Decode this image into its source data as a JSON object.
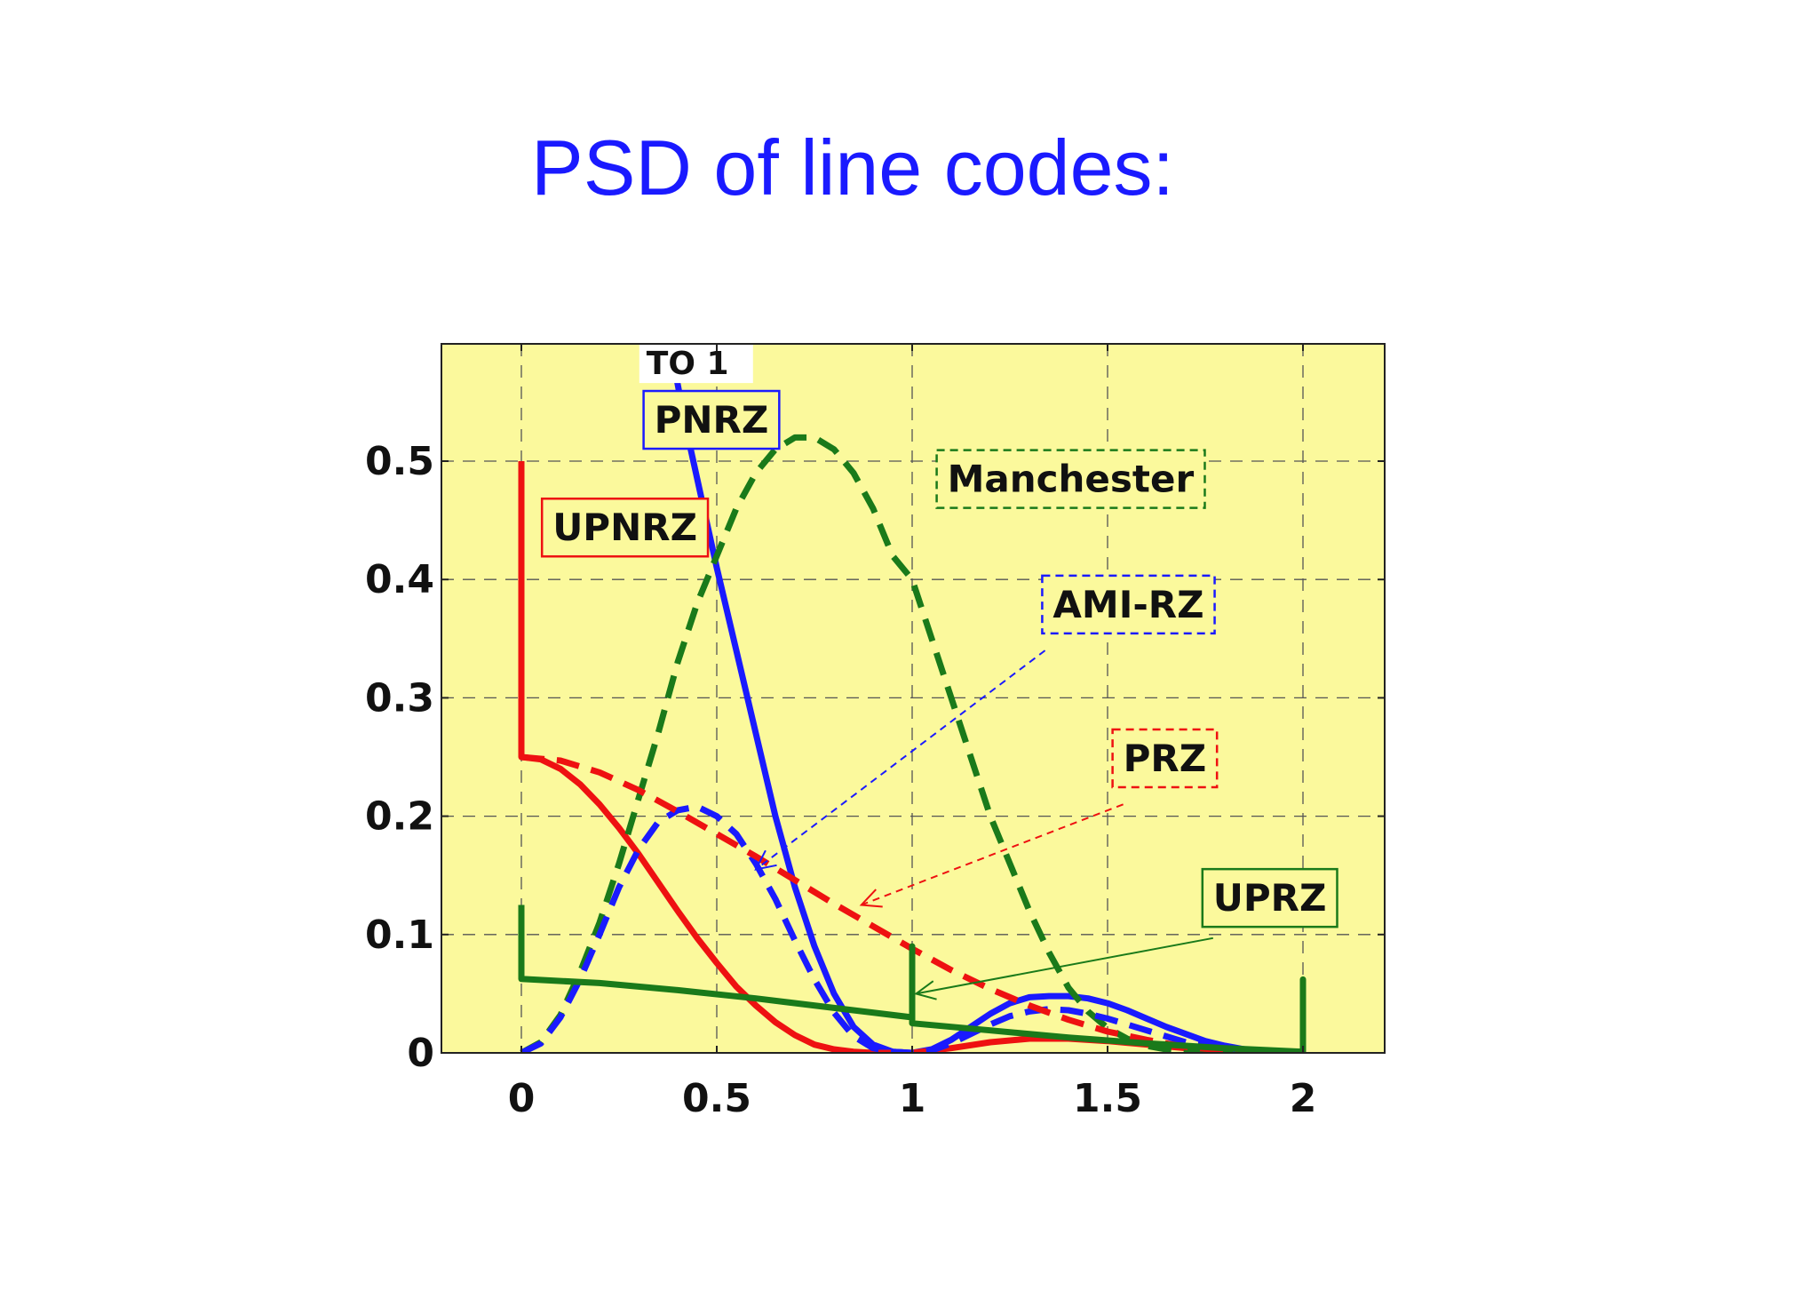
{
  "slide": {
    "title": "PSD of line codes:",
    "title_color": "#1a1aff"
  },
  "chart_data": {
    "type": "line",
    "xlim": [
      0,
      2
    ],
    "ylim": [
      0,
      0.5
    ],
    "x_ticks": [
      "0",
      "0.5",
      "1",
      "1.5",
      "2"
    ],
    "y_ticks": [
      "0",
      "0.1",
      "0.2",
      "0.3",
      "0.4",
      "0.5"
    ],
    "grid": true,
    "background": "#fbf99c",
    "annotations": [
      {
        "text": "TO 1",
        "at": [
          0.32,
          0.575
        ]
      }
    ],
    "series": [
      {
        "name": "PNRZ",
        "color": "#1a1aff",
        "dash": false,
        "x": [
          0.38,
          0.42,
          0.46,
          0.5,
          0.55,
          0.6,
          0.65,
          0.7,
          0.75,
          0.8,
          0.85,
          0.9,
          0.95,
          1.0,
          1.05,
          1.1,
          1.15,
          1.2,
          1.25,
          1.3,
          1.35,
          1.4,
          1.45,
          1.5,
          1.55,
          1.6,
          1.65,
          1.7,
          1.75,
          1.8,
          1.85,
          1.9,
          1.95,
          2.0
        ],
        "y": [
          0.6,
          0.53,
          0.47,
          0.41,
          0.34,
          0.27,
          0.2,
          0.14,
          0.09,
          0.05,
          0.022,
          0.007,
          0.001,
          0.0,
          0.003,
          0.011,
          0.022,
          0.033,
          0.042,
          0.047,
          0.048,
          0.048,
          0.046,
          0.042,
          0.036,
          0.029,
          0.022,
          0.016,
          0.01,
          0.006,
          0.003,
          0.001,
          0.0,
          0.0
        ],
        "label": {
          "text": "PNRZ",
          "at": [
            0.34,
            0.524
          ],
          "box": "solid",
          "color": "#1a1aff"
        }
      },
      {
        "name": "UPNRZ",
        "color": "#ee1111",
        "dash": false,
        "x": [
          0.0,
          0.0,
          0.0,
          0.05,
          0.1,
          0.15,
          0.2,
          0.25,
          0.3,
          0.35,
          0.4,
          0.45,
          0.5,
          0.55,
          0.6,
          0.65,
          0.7,
          0.75,
          0.8,
          0.85,
          0.9,
          0.95,
          1.0,
          1.1,
          1.2,
          1.3,
          1.4,
          1.5,
          1.6,
          1.7,
          1.8,
          1.9,
          2.0
        ],
        "y": [
          0.5,
          0.4,
          0.25,
          0.248,
          0.24,
          0.227,
          0.21,
          0.19,
          0.168,
          0.144,
          0.12,
          0.097,
          0.076,
          0.056,
          0.04,
          0.026,
          0.015,
          0.007,
          0.003,
          0.001,
          0.0,
          0.0,
          0.0,
          0.004,
          0.009,
          0.012,
          0.012,
          0.01,
          0.007,
          0.004,
          0.002,
          0.0,
          0.0
        ],
        "label": {
          "text": "UPNRZ",
          "at": [
            0.08,
            0.433
          ],
          "box": "solid",
          "color": "#ee1111"
        }
      },
      {
        "name": "Manchester",
        "color": "#1a7a1a",
        "dash": true,
        "x": [
          0.0,
          0.05,
          0.1,
          0.15,
          0.2,
          0.25,
          0.3,
          0.35,
          0.4,
          0.45,
          0.5,
          0.55,
          0.6,
          0.65,
          0.7,
          0.75,
          0.8,
          0.85,
          0.9,
          0.95,
          1.0,
          1.05,
          1.1,
          1.15,
          1.2,
          1.25,
          1.3,
          1.35,
          1.4,
          1.45,
          1.5,
          1.55,
          1.6,
          1.65,
          1.7,
          1.75,
          1.8,
          1.9,
          2.0
        ],
        "y": [
          0.0,
          0.009,
          0.032,
          0.068,
          0.11,
          0.16,
          0.215,
          0.27,
          0.33,
          0.38,
          0.42,
          0.46,
          0.49,
          0.51,
          0.52,
          0.52,
          0.51,
          0.49,
          0.46,
          0.42,
          0.4,
          0.35,
          0.3,
          0.25,
          0.2,
          0.16,
          0.12,
          0.085,
          0.055,
          0.035,
          0.021,
          0.012,
          0.006,
          0.003,
          0.001,
          0.0,
          0.0,
          0.0,
          0.0
        ],
        "label": {
          "text": "Manchester",
          "at": [
            1.09,
            0.474
          ],
          "box": "dashed",
          "color": "#1a7a1a"
        }
      },
      {
        "name": "AMI-RZ",
        "color": "#1a1aff",
        "dash": true,
        "x": [
          0.0,
          0.05,
          0.1,
          0.15,
          0.2,
          0.25,
          0.3,
          0.35,
          0.4,
          0.45,
          0.5,
          0.55,
          0.6,
          0.65,
          0.7,
          0.75,
          0.8,
          0.85,
          0.9,
          0.95,
          1.0,
          1.05,
          1.1,
          1.15,
          1.2,
          1.25,
          1.3,
          1.35,
          1.4,
          1.45,
          1.5,
          1.55,
          1.6,
          1.65,
          1.7,
          1.75,
          1.8,
          1.85,
          1.9,
          1.95,
          2.0
        ],
        "y": [
          0.0,
          0.008,
          0.03,
          0.062,
          0.1,
          0.14,
          0.172,
          0.195,
          0.205,
          0.208,
          0.2,
          0.185,
          0.16,
          0.13,
          0.095,
          0.062,
          0.034,
          0.014,
          0.004,
          0.001,
          0.0,
          0.002,
          0.008,
          0.016,
          0.024,
          0.031,
          0.035,
          0.037,
          0.036,
          0.033,
          0.029,
          0.024,
          0.019,
          0.014,
          0.009,
          0.006,
          0.003,
          0.002,
          0.001,
          0.0,
          0.0
        ],
        "label": {
          "text": "AMI-RZ",
          "at": [
            1.36,
            0.368
          ],
          "box": "dashed",
          "color": "#1a1aff"
        }
      },
      {
        "name": "PRZ",
        "color": "#ee1111",
        "dash": true,
        "x": [
          0.0,
          0.1,
          0.2,
          0.3,
          0.4,
          0.5,
          0.6,
          0.7,
          0.8,
          0.9,
          1.0,
          1.1,
          1.2,
          1.3,
          1.4,
          1.5,
          1.6,
          1.7,
          1.8,
          1.9,
          2.0
        ],
        "y": [
          0.25,
          0.247,
          0.237,
          0.222,
          0.204,
          0.185,
          0.166,
          0.146,
          0.126,
          0.107,
          0.088,
          0.07,
          0.054,
          0.04,
          0.028,
          0.018,
          0.011,
          0.005,
          0.002,
          0.0,
          0.0
        ],
        "label": {
          "text": "PRZ",
          "at": [
            1.54,
            0.238
          ],
          "box": "dashed",
          "color": "#ee1111"
        }
      },
      {
        "name": "UPRZ",
        "color": "#1a7a1a",
        "dash": false,
        "x": [
          0.0,
          0.0,
          0.0,
          0.2,
          0.4,
          0.6,
          0.8,
          1.0,
          1.0,
          1.0,
          1.0,
          1.2,
          1.4,
          1.6,
          1.8,
          2.0,
          2.0,
          2.0,
          2.0
        ],
        "y": [
          0.125,
          0.08,
          0.0625,
          0.059,
          0.053,
          0.046,
          0.038,
          0.03,
          0.09,
          0.025,
          0.025,
          0.019,
          0.013,
          0.008,
          0.004,
          0.001,
          0.062,
          0.0,
          0.0
        ],
        "label": {
          "text": "UPRZ",
          "at": [
            1.77,
            0.12
          ],
          "box": "solid",
          "color": "#1a7a1a"
        }
      }
    ],
    "arrows": [
      {
        "series": "AMI-RZ",
        "from": [
          1.34,
          0.34
        ],
        "to": [
          0.6,
          0.155
        ],
        "color": "#1a1aff"
      },
      {
        "series": "PRZ",
        "from": [
          1.54,
          0.21
        ],
        "to": [
          0.87,
          0.125
        ],
        "color": "#ee1111"
      },
      {
        "series": "UPRZ",
        "from": [
          1.77,
          0.097
        ],
        "to": [
          1.01,
          0.05
        ],
        "color": "#1a7a1a"
      }
    ]
  }
}
